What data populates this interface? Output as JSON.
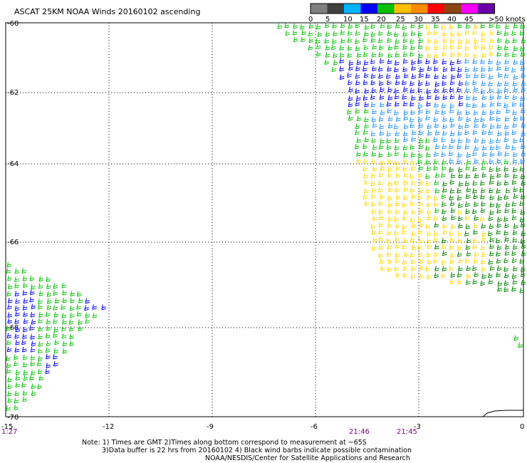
{
  "title": "ASCAT 25KM NOAA Winds 20160102 ascending",
  "legend": {
    "labels": [
      "0",
      "5",
      "10",
      "15",
      "20",
      "25",
      "30",
      "35",
      "40",
      "45",
      ">50 knots"
    ],
    "colors": [
      "#7f7f7f",
      "#3f3f3f",
      "#00b4ff",
      "#0000ff",
      "#00c000",
      "#ffc000",
      "#ff8c00",
      "#ff0000",
      "#8b4513",
      "#ff00ff",
      "#6a00a8"
    ]
  },
  "axes": {
    "lat_labels": [
      "-60",
      "-62",
      "-64",
      "-66",
      "-68",
      "-70"
    ],
    "lon_labels": [
      "-15",
      "-12",
      "-9",
      "-6",
      "-3",
      "0"
    ]
  },
  "times": [
    "1:27",
    "21:46",
    "21:45"
  ],
  "notes": [
    "Note: 1) Times are GMT 2)Times along bottom correspond to measurement at ~65S",
    "3)Data buffer is 22 hrs from 20160102 4) Black wind barbs indicate possible contamination",
    "NOAA/NESDIS/Center for Satellite Applications and Research"
  ],
  "barb_colors": {
    "green": "#00c000",
    "dark_green": "#008000",
    "blue": "#0000ff",
    "light_blue": "#1e90ff",
    "yellow": "#ffd700"
  }
}
